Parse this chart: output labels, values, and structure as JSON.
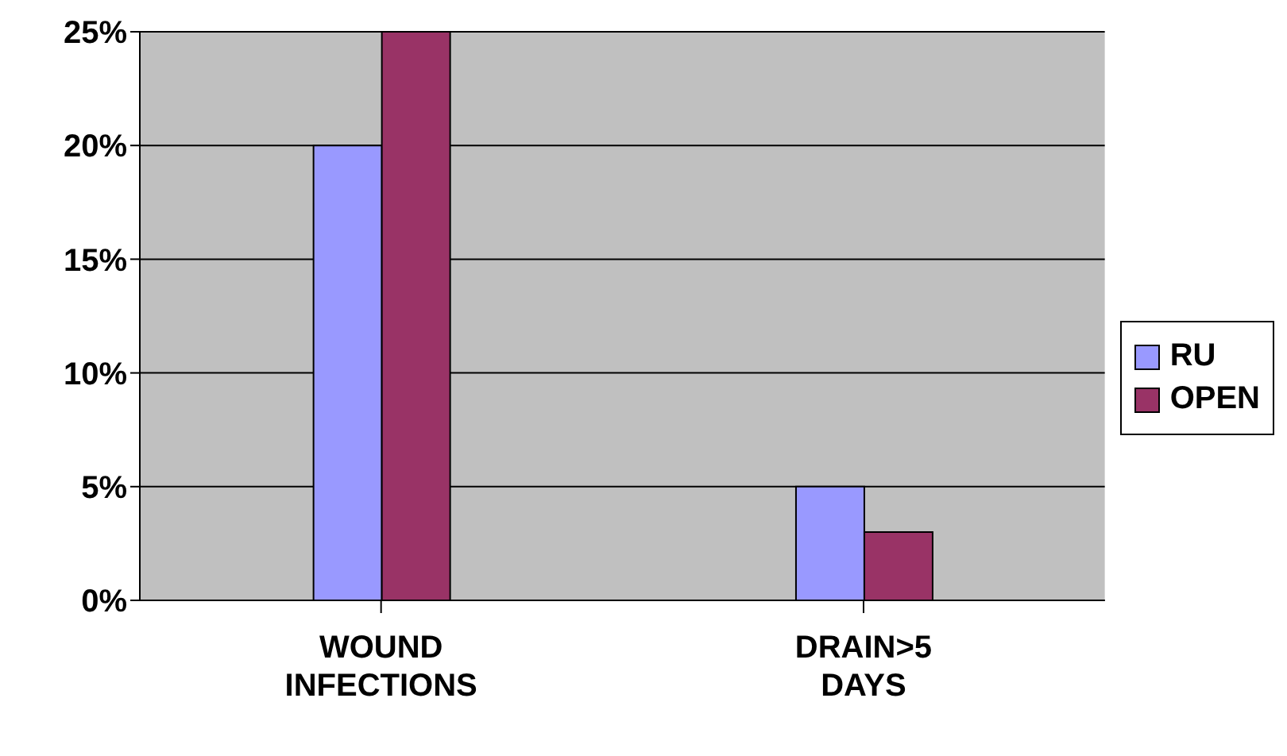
{
  "chart_data": {
    "type": "bar",
    "categories": [
      "WOUND INFECTIONS",
      "DRAIN>5 DAYS"
    ],
    "series": [
      {
        "name": "RU",
        "color": "#9999ff",
        "values": [
          20,
          5
        ]
      },
      {
        "name": "OPEN",
        "color": "#993366",
        "values": [
          25,
          3
        ]
      }
    ],
    "ylim": [
      0,
      25
    ],
    "yticks": [
      {
        "value": 0,
        "label": "0%"
      },
      {
        "value": 5,
        "label": "5%"
      },
      {
        "value": 10,
        "label": "10%"
      },
      {
        "value": 15,
        "label": "15%"
      },
      {
        "value": 20,
        "label": "20%"
      },
      {
        "value": 25,
        "label": "25%"
      }
    ],
    "grid": "y",
    "legend": "right"
  }
}
